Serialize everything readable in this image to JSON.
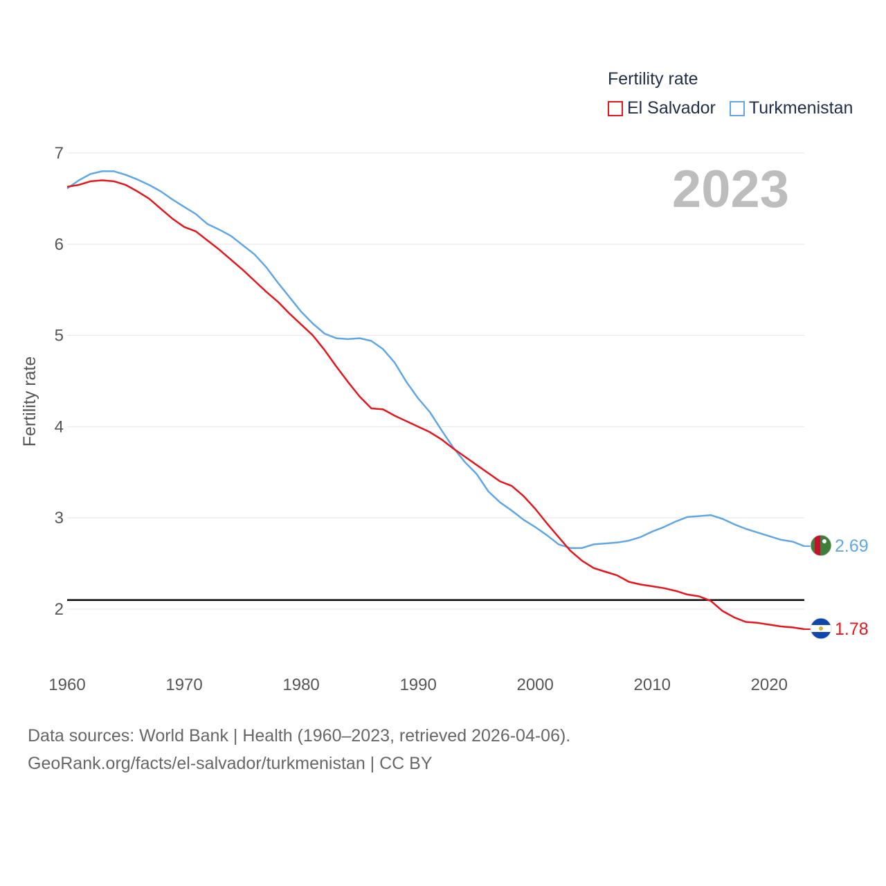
{
  "legend": {
    "title": "Fertility rate",
    "entries": [
      {
        "name": "El Salvador",
        "color": "#e8141b"
      },
      {
        "name": "Turkmenistan",
        "color": "#5fa6e8"
      }
    ]
  },
  "year_label": "2023",
  "footer": {
    "line1": "Data sources: World Bank | Health (1960–2023, retrieved 2026-04-06).",
    "line2": "GeoRank.org/facts/el-salvador/turkmenistan | CC BY"
  },
  "chart_data": {
    "type": "line",
    "title": "Fertility rate",
    "xlabel": "",
    "ylabel": "Fertility rate",
    "xlim": [
      1960,
      2023
    ],
    "ylim": [
      1.5,
      7
    ],
    "x_ticks": [
      "1960",
      "1970",
      "1980",
      "1990",
      "2000",
      "2010",
      "2020"
    ],
    "y_ticks": [
      "2",
      "3",
      "4",
      "5",
      "6",
      "7"
    ],
    "reference_line": {
      "y": 2.1,
      "color": "#000000"
    },
    "x": [
      1960,
      1961,
      1962,
      1963,
      1964,
      1965,
      1966,
      1967,
      1968,
      1969,
      1970,
      1971,
      1972,
      1973,
      1974,
      1975,
      1976,
      1977,
      1978,
      1979,
      1980,
      1981,
      1982,
      1983,
      1984,
      1985,
      1986,
      1987,
      1988,
      1989,
      1990,
      1991,
      1992,
      1993,
      1994,
      1995,
      1996,
      1997,
      1998,
      1999,
      2000,
      2001,
      2002,
      2003,
      2004,
      2005,
      2006,
      2007,
      2008,
      2009,
      2010,
      2011,
      2012,
      2013,
      2014,
      2015,
      2016,
      2017,
      2018,
      2019,
      2020,
      2021,
      2022,
      2023
    ],
    "series": [
      {
        "name": "El Salvador",
        "color": "#e8141b",
        "end_label": "1.78",
        "values": [
          6.63,
          6.65,
          6.69,
          6.7,
          6.69,
          6.65,
          6.58,
          6.5,
          6.39,
          6.28,
          6.19,
          6.14,
          6.04,
          5.94,
          5.83,
          5.72,
          5.6,
          5.48,
          5.37,
          5.24,
          5.12,
          5.0,
          4.84,
          4.66,
          4.49,
          4.33,
          4.2,
          4.19,
          4.12,
          4.06,
          4.0,
          3.94,
          3.86,
          3.76,
          3.67,
          3.58,
          3.49,
          3.4,
          3.35,
          3.24,
          3.1,
          2.94,
          2.79,
          2.64,
          2.53,
          2.45,
          2.41,
          2.37,
          2.3,
          2.27,
          2.25,
          2.23,
          2.2,
          2.16,
          2.14,
          2.09,
          1.98,
          1.91,
          1.86,
          1.85,
          1.83,
          1.81,
          1.8,
          1.78
        ]
      },
      {
        "name": "Turkmenistan",
        "color": "#5fa6e8",
        "end_label": "2.69",
        "values": [
          6.61,
          6.7,
          6.77,
          6.8,
          6.8,
          6.76,
          6.71,
          6.65,
          6.58,
          6.49,
          6.41,
          6.33,
          6.22,
          6.16,
          6.09,
          5.99,
          5.89,
          5.75,
          5.58,
          5.42,
          5.26,
          5.13,
          5.02,
          4.97,
          4.96,
          4.97,
          4.94,
          4.85,
          4.7,
          4.49,
          4.31,
          4.16,
          3.96,
          3.77,
          3.61,
          3.48,
          3.29,
          3.17,
          3.08,
          2.98,
          2.9,
          2.81,
          2.71,
          2.67,
          2.67,
          2.71,
          2.72,
          2.73,
          2.75,
          2.79,
          2.85,
          2.9,
          2.96,
          3.01,
          3.02,
          3.03,
          2.99,
          2.93,
          2.88,
          2.84,
          2.8,
          2.76,
          2.74,
          2.69
        ]
      }
    ]
  }
}
